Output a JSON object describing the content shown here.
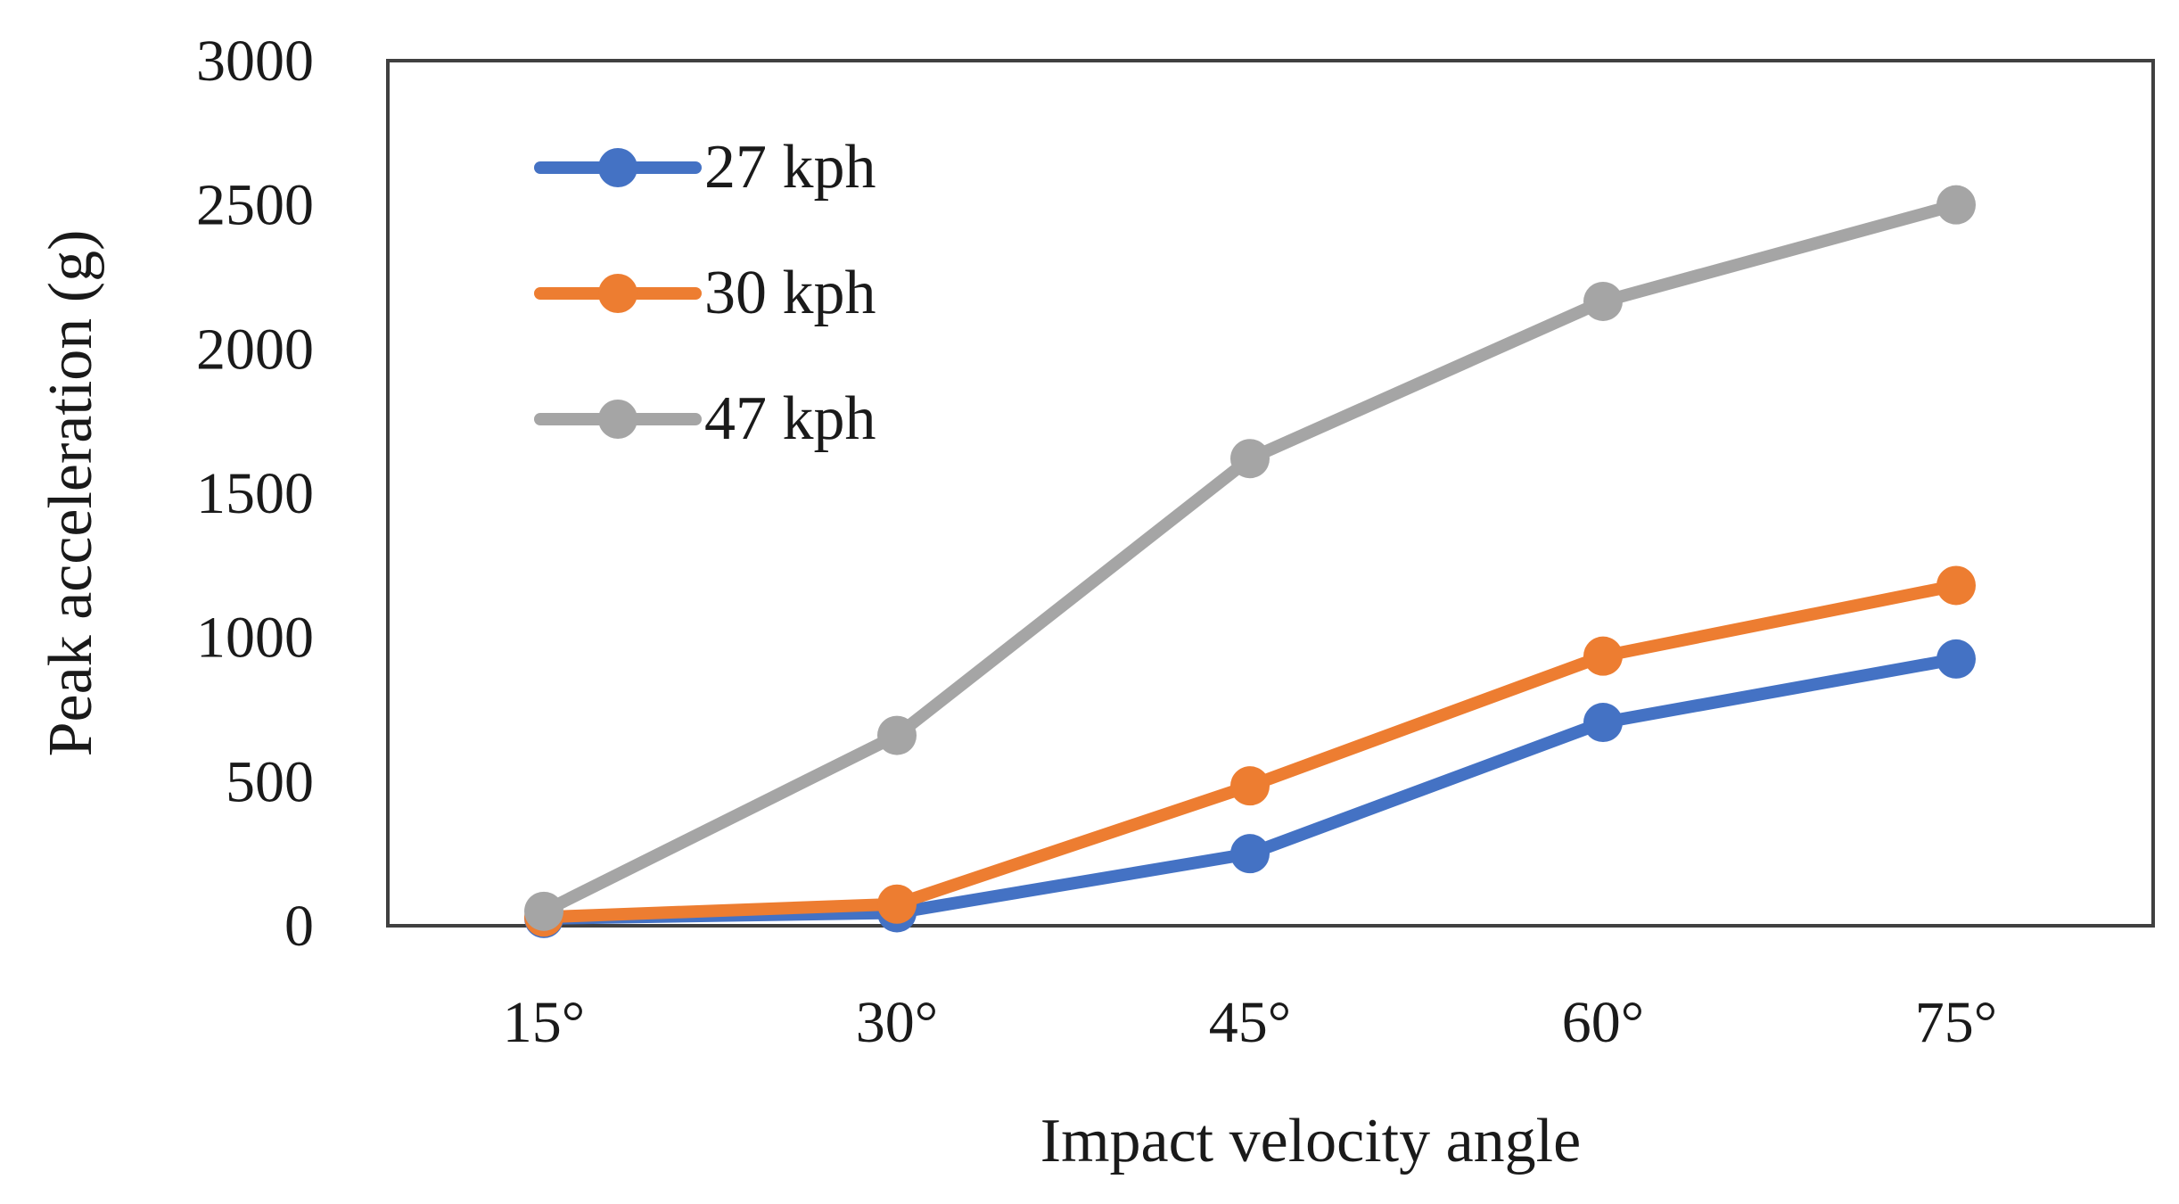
{
  "chart_data": {
    "type": "line",
    "title": "",
    "xlabel": "Impact velocity angle",
    "ylabel": "Peak acceleration (g)",
    "categories": [
      "15°",
      "30°",
      "45°",
      "60°",
      "75°"
    ],
    "ylim": [
      0,
      3000
    ],
    "yticks": [
      0,
      500,
      1000,
      1500,
      2000,
      2500,
      3000
    ],
    "grid": false,
    "legend_position": "top-left",
    "series": [
      {
        "name": "27 kph",
        "color": "#4472C4",
        "values": [
          25,
          45,
          250,
          705,
          925
        ]
      },
      {
        "name": "30 kph",
        "color": "#ED7D31",
        "values": [
          30,
          75,
          485,
          935,
          1180
        ]
      },
      {
        "name": "47 kph",
        "color": "#A5A5A5",
        "values": [
          50,
          660,
          1620,
          2165,
          2500
        ]
      }
    ]
  }
}
